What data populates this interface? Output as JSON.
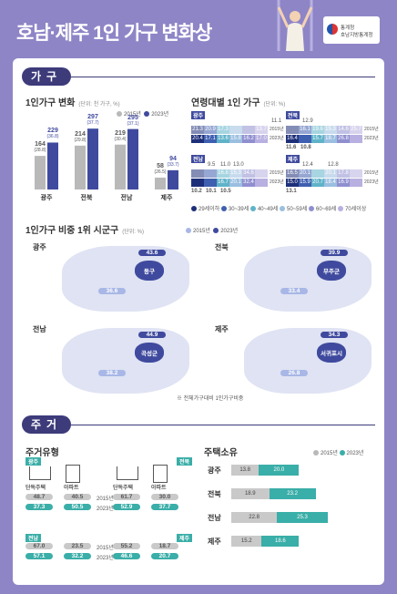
{
  "page": {
    "title": "호남·제주 1인 가구 변화상"
  },
  "brand": {
    "line1": "통계청",
    "line2": "호남지방통계청"
  },
  "household": {
    "section": "가구",
    "change": {
      "title": "1인가구 변화",
      "unit": "(단위: 천 가구, %)",
      "legend": [
        "2015년",
        "2023년"
      ],
      "regions": [
        {
          "name": "광주",
          "v2015": "164",
          "p2015": "(28.8)",
          "v2023": "229",
          "p2023": "(36.8)"
        },
        {
          "name": "전북",
          "v2015": "214",
          "p2015": "(29.8)",
          "v2023": "297",
          "p2023": "(37.7)"
        },
        {
          "name": "전남",
          "v2015": "219",
          "p2015": "(30.4)",
          "v2023": "295",
          "p2023": "(37.1)"
        },
        {
          "name": "제주",
          "v2015": "58",
          "p2015": "(26.5)",
          "v2023": "94",
          "p2023": "(33.7)"
        }
      ]
    },
    "age": {
      "title": "연령대별 1인 가구",
      "unit": "(단위: %)",
      "years": [
        "2015년",
        "2023년"
      ],
      "legend": [
        "29세이하",
        "30~39세",
        "40~49세",
        "50~59세",
        "60~69세",
        "70세이상"
      ],
      "blocks": [
        {
          "name": "광주",
          "top": [
            "",
            "",
            "",
            "",
            "",
            "11.1"
          ],
          "r2015": [
            "21.3",
            "20.9",
            "17.3",
            "",
            "",
            "13.7"
          ],
          "r2023": [
            "20.4",
            "17.1",
            "13.6",
            "15.8",
            "16.2",
            "17.0"
          ]
        },
        {
          "name": "전북",
          "top": [
            "12.9",
            "",
            "",
            "",
            "",
            ""
          ],
          "r2015": [
            "",
            "16.1",
            "19.6",
            "15.3",
            "14.6",
            "25.7"
          ],
          "r2023": [
            "16.4",
            "",
            "15.7",
            "18.7",
            "26.8",
            ""
          ],
          "bottom": [
            "11.6",
            "10.8"
          ]
        },
        {
          "name": "전남",
          "top": [
            "9.5",
            "11.0",
            "13.0",
            "",
            "",
            ""
          ],
          "r2015": [
            "",
            "",
            "16.8",
            "15.3",
            "34.6",
            ""
          ],
          "r2023": [
            "",
            "",
            "16.7",
            "20.1",
            "32.4",
            ""
          ],
          "bottom": [
            "10.2",
            "10.1",
            "10.5"
          ]
        },
        {
          "name": "제주",
          "top": [
            "12.4",
            "",
            "12.8",
            "",
            "",
            ""
          ],
          "r2015": [
            "16.5",
            "20.1",
            "",
            "20.1",
            "17.8",
            ""
          ],
          "r2023": [
            "15.0",
            "15.9",
            "20.7",
            "18.4",
            "16.9",
            ""
          ],
          "bottom": [
            "13.1"
          ]
        }
      ]
    },
    "top_sigungu": {
      "title": "1인가구 비중 1위 시군구",
      "unit": "(단위: %)",
      "legend": [
        "2015년",
        "2023년"
      ],
      "maps": [
        {
          "region": "광주",
          "area": "동구",
          "v2015": "36.6",
          "v2023": "43.6"
        },
        {
          "region": "전북",
          "area": "무주군",
          "v2015": "33.4",
          "v2023": "39.9"
        },
        {
          "region": "전남",
          "area": "곡성군",
          "v2015": "38.2",
          "v2023": "44.9"
        },
        {
          "region": "제주",
          "area": "서귀포시",
          "v2015": "26.8",
          "v2023": "34.3"
        }
      ],
      "note": "※ 전체가구대비 1인가구비중"
    }
  },
  "housing": {
    "section": "주거",
    "type": {
      "title": "주거유형",
      "groups": [
        {
          "region": "광주",
          "house_label": "단독주택",
          "apt_label": "아파트",
          "house_2015": "48.7",
          "house_2023": "37.3",
          "apt_2015": "40.5",
          "apt_2023": "50.5"
        },
        {
          "region": "전북",
          "house_label": "단독주택",
          "apt_label": "아파트",
          "house_2015": "61.7",
          "house_2023": "52.9",
          "apt_2015": "30.0",
          "apt_2023": "37.7"
        },
        {
          "region": "전남",
          "house_2015": "67.0",
          "house_2023": "57.1",
          "apt_2015": "23.5",
          "apt_2023": "32.2"
        },
        {
          "region": "제주",
          "house_2015": "55.2",
          "house_2023": "46.6",
          "apt_2015": "18.7",
          "apt_2023": "20.7"
        }
      ],
      "years": [
        "2015년",
        "2023년"
      ]
    },
    "ownership": {
      "title": "주택소유",
      "legend": [
        "2015년",
        "2023년"
      ],
      "rows": [
        {
          "name": "광주",
          "v2015": "13.8",
          "v2023": "20.0"
        },
        {
          "name": "전북",
          "v2015": "18.9",
          "v2023": "23.2"
        },
        {
          "name": "전남",
          "v2015": "22.8",
          "v2023": "25.3"
        },
        {
          "name": "제주",
          "v2015": "15.2",
          "v2023": "18.6"
        }
      ]
    }
  },
  "colors": {
    "c2015": "#b9b9b9",
    "c2023": "#3f4a9e",
    "teal": "#3aaea8",
    "navy": "#3d3b7a"
  }
}
